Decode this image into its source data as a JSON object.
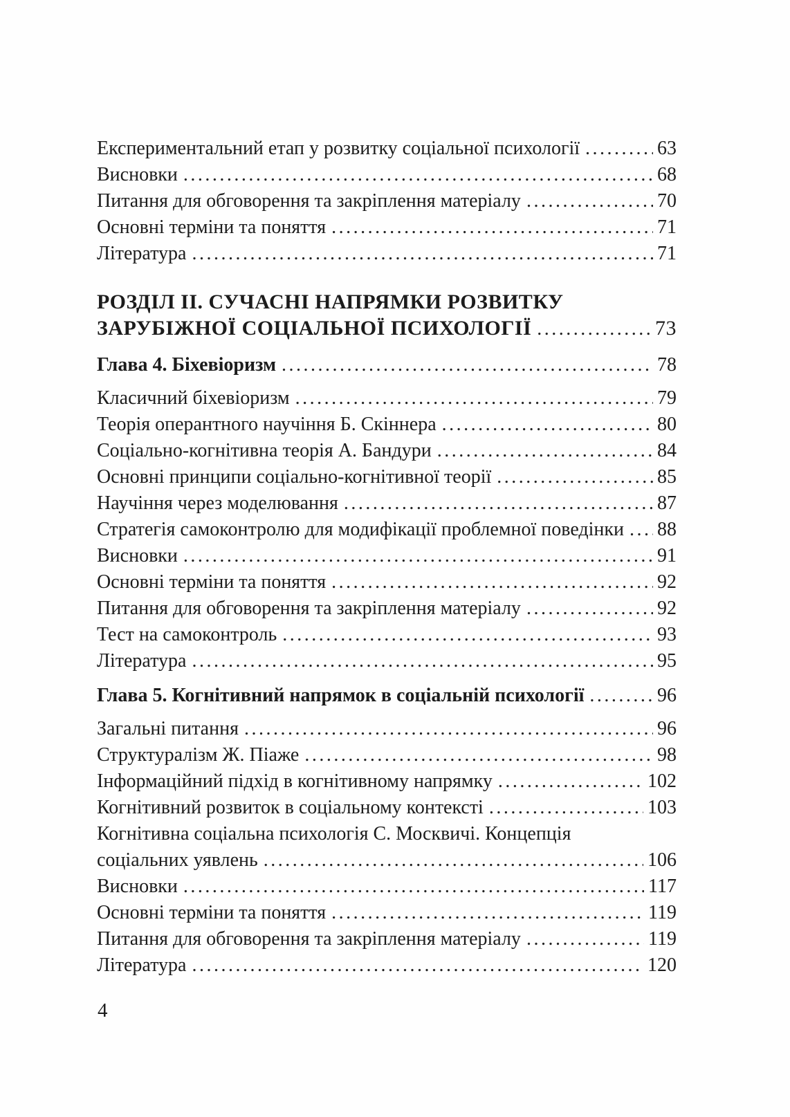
{
  "page": {
    "footer_page_number": "4",
    "text_color": "#1c1c1c",
    "background_color": "#fefefe"
  },
  "toc": {
    "entries": [
      {
        "style": "normal",
        "lines": [
          "Експериментальний етап у розвитку соціальної психології"
        ],
        "page": "63"
      },
      {
        "style": "normal",
        "lines": [
          "Висновки"
        ],
        "page": "68"
      },
      {
        "style": "normal",
        "lines": [
          "Питання для обговорення та закріплення матеріалу"
        ],
        "page": "70"
      },
      {
        "style": "normal",
        "lines": [
          "Основні терміни та поняття"
        ],
        "page": "71"
      },
      {
        "style": "normal",
        "lines": [
          "Література"
        ],
        "page": "71"
      },
      {
        "style": "section",
        "lines": [
          "РОЗДІЛ II. СУЧАСНІ НАПРЯМКИ РОЗВИТКУ",
          "ЗАРУБІЖНОЇ СОЦІАЛЬНОЇ ПСИХОЛОГІЇ"
        ],
        "page": "73"
      },
      {
        "style": "chapter",
        "lines": [
          "Глава 4. Біхевіоризм"
        ],
        "page": "78"
      },
      {
        "style": "normal",
        "lines": [
          "Класичний біхевіоризм"
        ],
        "page": "79"
      },
      {
        "style": "normal",
        "lines": [
          "Теорія оперантного научіння Б. Скіннера"
        ],
        "page": "80"
      },
      {
        "style": "normal",
        "lines": [
          "Соціально-когнітивна теорія А. Бандури"
        ],
        "page": "84"
      },
      {
        "style": "normal",
        "lines": [
          "Основні принципи соціально-когнітивної теорії"
        ],
        "page": "85"
      },
      {
        "style": "normal",
        "lines": [
          "Научіння через моделювання"
        ],
        "page": "87"
      },
      {
        "style": "normal",
        "lines": [
          "Стратегія самоконтролю для модифікації проблемної поведінки"
        ],
        "page": "88"
      },
      {
        "style": "normal",
        "lines": [
          "Висновки"
        ],
        "page": "91"
      },
      {
        "style": "normal",
        "lines": [
          "Основні терміни та поняття"
        ],
        "page": "92"
      },
      {
        "style": "normal",
        "lines": [
          "Питання для обговорення та закріплення матеріалу"
        ],
        "page": "92"
      },
      {
        "style": "normal",
        "lines": [
          "Тест на самоконтроль"
        ],
        "page": "93"
      },
      {
        "style": "normal",
        "lines": [
          "Література"
        ],
        "page": "95"
      },
      {
        "style": "chapter",
        "lines": [
          "Глава 5. Когнітивний напрямок в соціальній психології"
        ],
        "page": "96"
      },
      {
        "style": "normal",
        "lines": [
          "Загальні питання"
        ],
        "page": "96"
      },
      {
        "style": "normal",
        "lines": [
          "Структуралізм Ж. Піаже"
        ],
        "page": "98"
      },
      {
        "style": "normal",
        "lines": [
          "Інформаційний підхід в когнітивному напрямку"
        ],
        "page": "102"
      },
      {
        "style": "normal",
        "lines": [
          "Когнітивний розвиток в соціальному контексті"
        ],
        "page": "103"
      },
      {
        "style": "normal",
        "lines": [
          "Когнітивна соціальна психологія С. Москвичі. Концепція",
          "соціальних уявлень"
        ],
        "page": "106"
      },
      {
        "style": "normal",
        "lines": [
          "Висновки"
        ],
        "page": "117"
      },
      {
        "style": "normal",
        "lines": [
          "Основні терміни та поняття"
        ],
        "page": "119"
      },
      {
        "style": "normal",
        "lines": [
          "Питання для обговорення та закріплення матеріалу"
        ],
        "page": "119"
      },
      {
        "style": "normal",
        "lines": [
          "Література"
        ],
        "page": "120"
      }
    ]
  }
}
